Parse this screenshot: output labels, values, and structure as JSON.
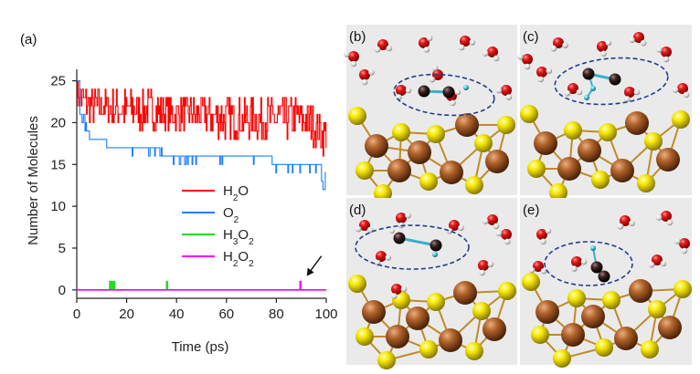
{
  "chart_data": {
    "type": "line",
    "panel_label": "(a)",
    "xlabel": "Time (ps)",
    "ylabel": "Number of Molecules",
    "xlim": [
      0,
      100
    ],
    "ylim": [
      -1,
      25.5
    ],
    "x_ticks": [
      "0",
      "20",
      "40",
      "60",
      "80",
      "100"
    ],
    "y_ticks": [
      "0",
      "5",
      "10",
      "15",
      "20",
      "25"
    ],
    "legend_placement": "center-right",
    "series": [
      {
        "name": "H2O",
        "label_main": "H",
        "label_sub": "2",
        "label_tail": "O",
        "color": "#ff0000",
        "pattern": "noisy",
        "x": [
          0,
          5,
          10,
          20,
          30,
          40,
          50,
          60,
          65,
          70,
          80,
          90,
          95,
          100
        ],
        "y_low": [
          22,
          20,
          20,
          19,
          19,
          19,
          19,
          18,
          18,
          18,
          18,
          18,
          17,
          16
        ],
        "y_high": [
          25,
          24,
          24,
          24,
          24,
          23,
          23,
          23,
          23,
          23,
          23,
          23,
          22,
          21
        ]
      },
      {
        "name": "O2",
        "label_main": "O",
        "label_sub": "2",
        "label_tail": "",
        "color": "#1a7fff",
        "pattern": "step",
        "x": [
          0,
          1,
          2,
          3,
          5,
          8,
          12,
          18,
          24,
          34,
          44,
          65,
          78,
          98,
          100
        ],
        "y": [
          25,
          21,
          20,
          19,
          18,
          18,
          17,
          17,
          17,
          16,
          16,
          16,
          15,
          14,
          15
        ]
      },
      {
        "name": "H3O2",
        "label_main": "H",
        "label_sub": "3",
        "label_tail": "O",
        "label_sub2": "2",
        "color": "#22dd22",
        "pattern": "spikes",
        "baseline": 0,
        "spikes": [
          [
            13.2,
            1
          ],
          [
            13.6,
            1
          ],
          [
            14.0,
            1
          ],
          [
            14.4,
            1
          ],
          [
            14.8,
            1
          ],
          [
            36.0,
            1
          ]
        ]
      },
      {
        "name": "H2O2",
        "label_main": "H",
        "label_sub": "2",
        "label_tail": "O",
        "label_sub2": "2",
        "color": "#ff00ff",
        "pattern": "spikes",
        "baseline": 0,
        "spikes": [
          [
            89.5,
            1
          ]
        ]
      }
    ],
    "annotation": {
      "type": "arrow",
      "points_to_x": 90,
      "points_to_y": 1
    }
  },
  "snapshots": [
    {
      "label": "(b)"
    },
    {
      "label": "(c)"
    },
    {
      "label": "(d)"
    },
    {
      "label": "(e)"
    }
  ]
}
